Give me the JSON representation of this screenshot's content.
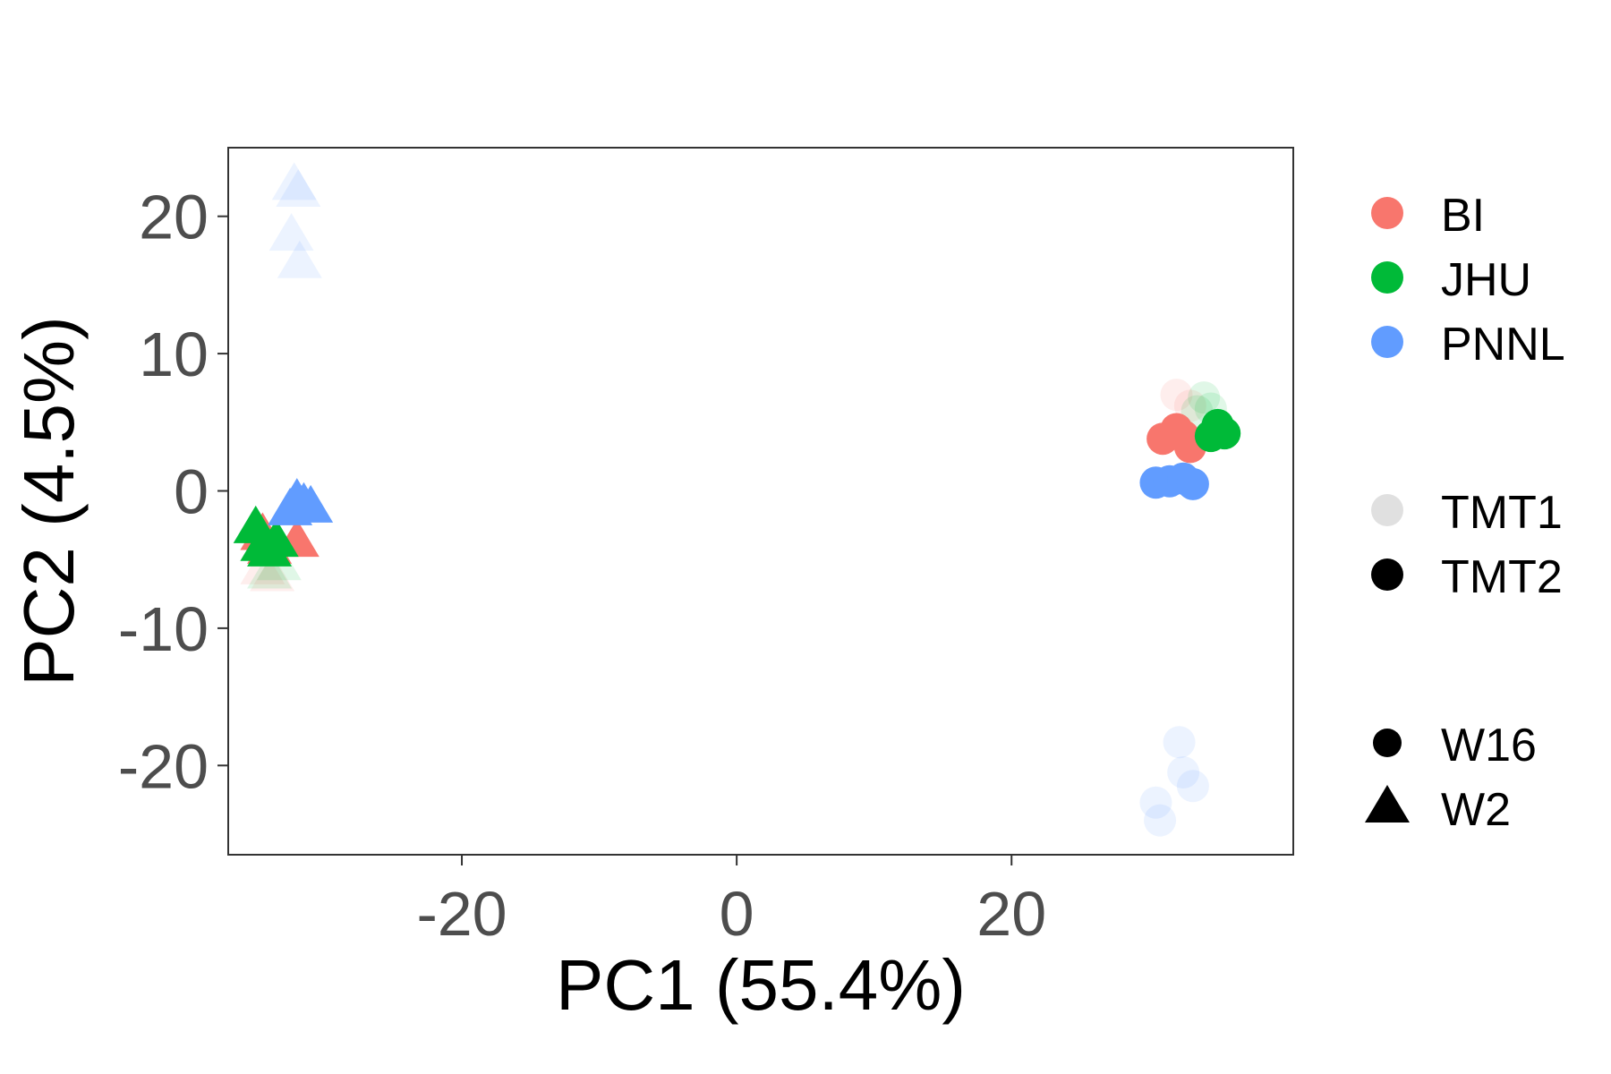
{
  "chart_data": {
    "type": "scatter",
    "xlabel": "PC1 (55.4%)",
    "ylabel": "PC2 (4.5%)",
    "xlim": [
      -37,
      40.5
    ],
    "ylim": [
      -26.5,
      25
    ],
    "xticks": [
      -20,
      0,
      20
    ],
    "xtick_labels": [
      "-20",
      "0",
      "20"
    ],
    "yticks": [
      -20,
      -10,
      0,
      10,
      20
    ],
    "ytick_labels": [
      "-20",
      "-10",
      "0",
      "10",
      "20"
    ],
    "grid": false,
    "legend_position": "right",
    "colors": {
      "BI": "#F8766D",
      "JHU": "#00BA38",
      "PNNL": "#619CFF"
    },
    "alpha": {
      "TMT1": 0.12,
      "TMT2": 1.0
    },
    "legend": {
      "site": [
        "BI",
        "JHU",
        "PNNL"
      ],
      "batch": [
        "TMT1",
        "TMT2"
      ],
      "week": [
        "W16",
        "W2"
      ]
    },
    "points": [
      {
        "site": "PNNL",
        "batch": "TMT1",
        "week": "W2",
        "x": -32.2,
        "y": 22.5
      },
      {
        "site": "PNNL",
        "batch": "TMT1",
        "week": "W2",
        "x": -31.9,
        "y": 22.0
      },
      {
        "site": "PNNL",
        "batch": "TMT1",
        "week": "W2",
        "x": -32.4,
        "y": 18.8
      },
      {
        "site": "PNNL",
        "batch": "TMT1",
        "week": "W2",
        "x": -31.8,
        "y": 16.8
      },
      {
        "site": "BI",
        "batch": "TMT1",
        "week": "W2",
        "x": -34.5,
        "y": -5.5
      },
      {
        "site": "BI",
        "batch": "TMT1",
        "week": "W2",
        "x": -33.8,
        "y": -6.0
      },
      {
        "site": "JHU",
        "batch": "TMT1",
        "week": "W2",
        "x": -34.0,
        "y": -5.8
      },
      {
        "site": "JHU",
        "batch": "TMT1",
        "week": "W2",
        "x": -33.3,
        "y": -5.2
      },
      {
        "site": "BI",
        "batch": "TMT2",
        "week": "W2",
        "x": -34.5,
        "y": -3.0
      },
      {
        "site": "BI",
        "batch": "TMT2",
        "week": "W2",
        "x": -32.0,
        "y": -3.5
      },
      {
        "site": "BI",
        "batch": "TMT2",
        "week": "W2",
        "x": -34.0,
        "y": -4.0
      },
      {
        "site": "JHU",
        "batch": "TMT2",
        "week": "W2",
        "x": -35.0,
        "y": -2.5
      },
      {
        "site": "JHU",
        "batch": "TMT2",
        "week": "W2",
        "x": -34.5,
        "y": -3.8
      },
      {
        "site": "JHU",
        "batch": "TMT2",
        "week": "W2",
        "x": -34.0,
        "y": -4.2
      },
      {
        "site": "JHU",
        "batch": "TMT2",
        "week": "W2",
        "x": -33.5,
        "y": -3.5
      },
      {
        "site": "PNNL",
        "batch": "TMT2",
        "week": "W2",
        "x": -32.0,
        "y": -0.5
      },
      {
        "site": "PNNL",
        "batch": "TMT2",
        "week": "W2",
        "x": -31.5,
        "y": -0.8
      },
      {
        "site": "PNNL",
        "batch": "TMT2",
        "week": "W2",
        "x": -32.5,
        "y": -1.2
      },
      {
        "site": "PNNL",
        "batch": "TMT2",
        "week": "W2",
        "x": -31.0,
        "y": -1.0
      },
      {
        "site": "BI",
        "batch": "TMT1",
        "week": "W16",
        "x": 32.0,
        "y": 7.0
      },
      {
        "site": "BI",
        "batch": "TMT1",
        "week": "W16",
        "x": 33.0,
        "y": 6.2
      },
      {
        "site": "JHU",
        "batch": "TMT1",
        "week": "W16",
        "x": 34.0,
        "y": 6.8
      },
      {
        "site": "JHU",
        "batch": "TMT1",
        "week": "W16",
        "x": 34.5,
        "y": 6.0
      },
      {
        "site": "JHU",
        "batch": "TMT1",
        "week": "W16",
        "x": 33.5,
        "y": 5.8
      },
      {
        "site": "BI",
        "batch": "TMT2",
        "week": "W16",
        "x": 31.0,
        "y": 3.8
      },
      {
        "site": "BI",
        "batch": "TMT2",
        "week": "W16",
        "x": 32.0,
        "y": 4.5
      },
      {
        "site": "BI",
        "batch": "TMT2",
        "week": "W16",
        "x": 33.0,
        "y": 3.2
      },
      {
        "site": "BI",
        "batch": "TMT2",
        "week": "W16",
        "x": 32.5,
        "y": 4.0
      },
      {
        "site": "JHU",
        "batch": "TMT2",
        "week": "W16",
        "x": 35.0,
        "y": 4.8
      },
      {
        "site": "JHU",
        "batch": "TMT2",
        "week": "W16",
        "x": 35.5,
        "y": 4.2
      },
      {
        "site": "JHU",
        "batch": "TMT2",
        "week": "W16",
        "x": 34.5,
        "y": 4.0
      },
      {
        "site": "PNNL",
        "batch": "TMT2",
        "week": "W16",
        "x": 30.5,
        "y": 0.6
      },
      {
        "site": "PNNL",
        "batch": "TMT2",
        "week": "W16",
        "x": 31.5,
        "y": 0.7
      },
      {
        "site": "PNNL",
        "batch": "TMT2",
        "week": "W16",
        "x": 32.5,
        "y": 0.9
      },
      {
        "site": "PNNL",
        "batch": "TMT2",
        "week": "W16",
        "x": 33.2,
        "y": 0.5
      },
      {
        "site": "PNNL",
        "batch": "TMT1",
        "week": "W16",
        "x": 32.2,
        "y": -18.3
      },
      {
        "site": "PNNL",
        "batch": "TMT1",
        "week": "W16",
        "x": 32.5,
        "y": -20.5
      },
      {
        "site": "PNNL",
        "batch": "TMT1",
        "week": "W16",
        "x": 33.2,
        "y": -21.5
      },
      {
        "site": "PNNL",
        "batch": "TMT1",
        "week": "W16",
        "x": 30.5,
        "y": -22.7
      },
      {
        "site": "PNNL",
        "batch": "TMT1",
        "week": "W16",
        "x": 30.8,
        "y": -24.0
      }
    ]
  }
}
